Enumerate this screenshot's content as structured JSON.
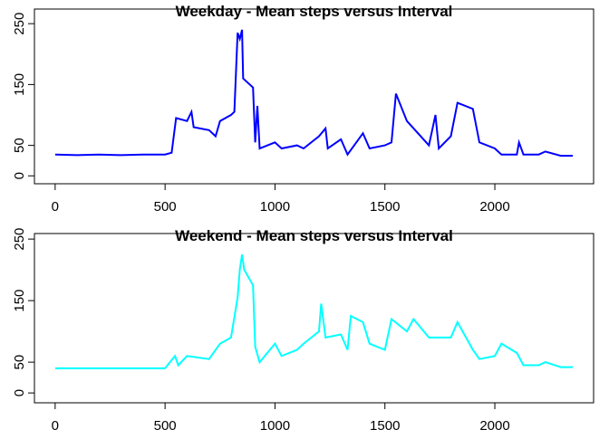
{
  "chart_data": [
    {
      "type": "line",
      "title": "Weekday - Mean steps versus Interval",
      "color": "#0000ff",
      "x": [
        0,
        100,
        200,
        300,
        400,
        500,
        530,
        550,
        600,
        620,
        630,
        700,
        730,
        750,
        800,
        815,
        830,
        840,
        850,
        855,
        900,
        910,
        920,
        930,
        1000,
        1030,
        1100,
        1130,
        1200,
        1230,
        1240,
        1300,
        1330,
        1400,
        1430,
        1500,
        1530,
        1550,
        1600,
        1700,
        1730,
        1745,
        1800,
        1830,
        1900,
        1930,
        2000,
        2030,
        2100,
        2110,
        2130,
        2200,
        2230,
        2300,
        2355
      ],
      "values": [
        35,
        34,
        35,
        34,
        35,
        35,
        38,
        95,
        90,
        105,
        80,
        75,
        65,
        90,
        100,
        105,
        235,
        225,
        240,
        160,
        145,
        55,
        115,
        45,
        55,
        45,
        50,
        45,
        65,
        78,
        45,
        60,
        35,
        70,
        45,
        50,
        55,
        135,
        90,
        50,
        100,
        45,
        65,
        120,
        110,
        55,
        45,
        35,
        35,
        55,
        35,
        35,
        40,
        33,
        33
      ],
      "xlim": [
        -94.2,
        2449.2
      ],
      "ylim": [
        -13,
        274
      ],
      "xticks": [
        0,
        500,
        1000,
        1500,
        2000
      ],
      "yticks": [
        0,
        50,
        150,
        250
      ]
    },
    {
      "type": "line",
      "title": "Weekend - Mean steps versus Interval",
      "color": "#00ffff",
      "x": [
        0,
        100,
        200,
        300,
        400,
        500,
        545,
        560,
        600,
        700,
        750,
        800,
        830,
        840,
        850,
        860,
        900,
        910,
        930,
        1000,
        1030,
        1100,
        1130,
        1200,
        1210,
        1230,
        1300,
        1330,
        1345,
        1400,
        1430,
        1500,
        1530,
        1600,
        1630,
        1700,
        1800,
        1830,
        1900,
        1930,
        2000,
        2030,
        2100,
        2130,
        2200,
        2230,
        2300,
        2355
      ],
      "values": [
        40,
        40,
        40,
        40,
        40,
        40,
        60,
        45,
        60,
        55,
        80,
        90,
        155,
        200,
        225,
        200,
        175,
        75,
        50,
        80,
        60,
        70,
        80,
        100,
        145,
        90,
        95,
        70,
        125,
        115,
        80,
        70,
        120,
        100,
        120,
        90,
        90,
        115,
        70,
        55,
        60,
        80,
        65,
        45,
        45,
        50,
        42,
        42
      ],
      "xlim": [
        -94.2,
        2449.2
      ],
      "ylim": [
        -16,
        259
      ],
      "xticks": [
        0,
        500,
        1000,
        1500,
        2000
      ],
      "yticks": [
        0,
        50,
        150,
        250
      ]
    }
  ]
}
